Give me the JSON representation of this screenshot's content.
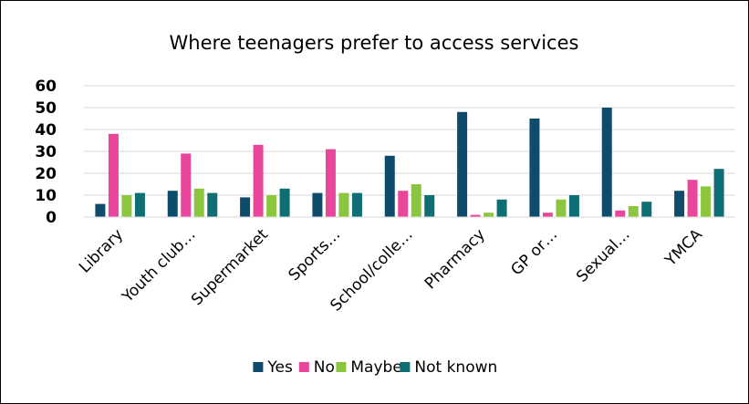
{
  "chart_data": {
    "type": "bar",
    "title": "Where teenagers prefer to access services",
    "xlabel": "",
    "ylabel": "",
    "ylim": [
      0,
      60
    ],
    "yticks": [
      0,
      10,
      20,
      30,
      40,
      50,
      60
    ],
    "grid": true,
    "legend_position": "bottom",
    "categories": [
      "Library",
      "Youth club…",
      "Supermarket",
      "Sports…",
      "School/colle…",
      "Pharmacy",
      "GP or…",
      "Sexual…",
      "YMCA"
    ],
    "series": [
      {
        "name": "Yes",
        "color": "#0f4c6b",
        "values": [
          6,
          12,
          9,
          11,
          28,
          48,
          45,
          50,
          12
        ]
      },
      {
        "name": "No",
        "color": "#e8469b",
        "values": [
          38,
          29,
          33,
          31,
          12,
          1,
          2,
          3,
          17
        ]
      },
      {
        "name": "Maybe",
        "color": "#8cc63f",
        "values": [
          10,
          13,
          10,
          11,
          15,
          2,
          8,
          5,
          14
        ]
      },
      {
        "name": "Not known",
        "color": "#0d6f73",
        "values": [
          11,
          11,
          13,
          11,
          10,
          8,
          10,
          7,
          22
        ]
      }
    ]
  }
}
